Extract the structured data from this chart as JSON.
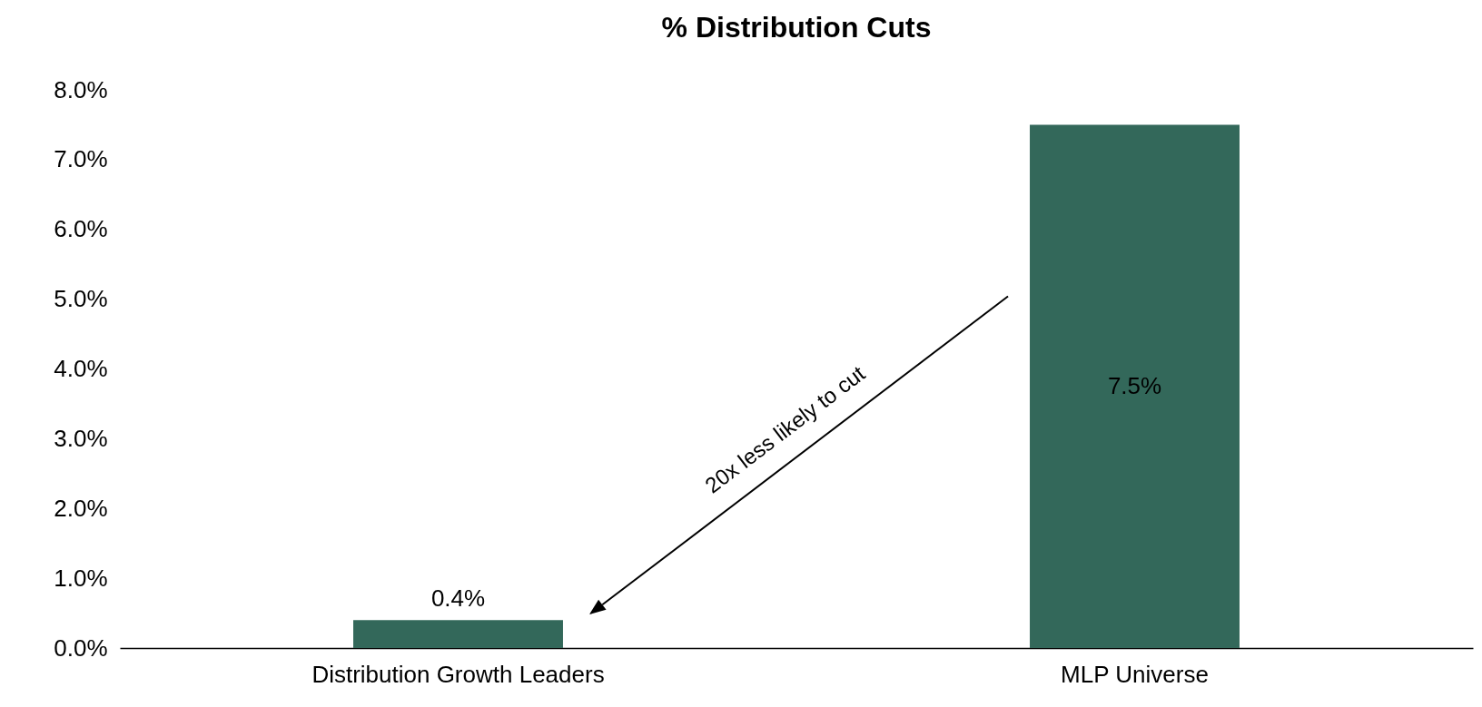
{
  "chart_data": {
    "type": "bar",
    "title": "% Distribution Cuts",
    "categories": [
      "Distribution Growth Leaders",
      "MLP Universe"
    ],
    "values": [
      0.4,
      7.5
    ],
    "color": "#33685a",
    "value_labels": [
      "0.4%",
      "7.5%"
    ],
    "ylim": [
      0,
      8
    ],
    "yticks": [
      {
        "value": 0,
        "label": "0.0%"
      },
      {
        "value": 1,
        "label": "1.0%"
      },
      {
        "value": 2,
        "label": "2.0%"
      },
      {
        "value": 3,
        "label": "3.0%"
      },
      {
        "value": 4,
        "label": "4.0%"
      },
      {
        "value": 5,
        "label": "5.0%"
      },
      {
        "value": 6,
        "label": "6.0%"
      },
      {
        "value": 7,
        "label": "7.0%"
      },
      {
        "value": 8,
        "label": "8.0%"
      }
    ],
    "annotations": [
      "20x less likely to cut"
    ]
  }
}
